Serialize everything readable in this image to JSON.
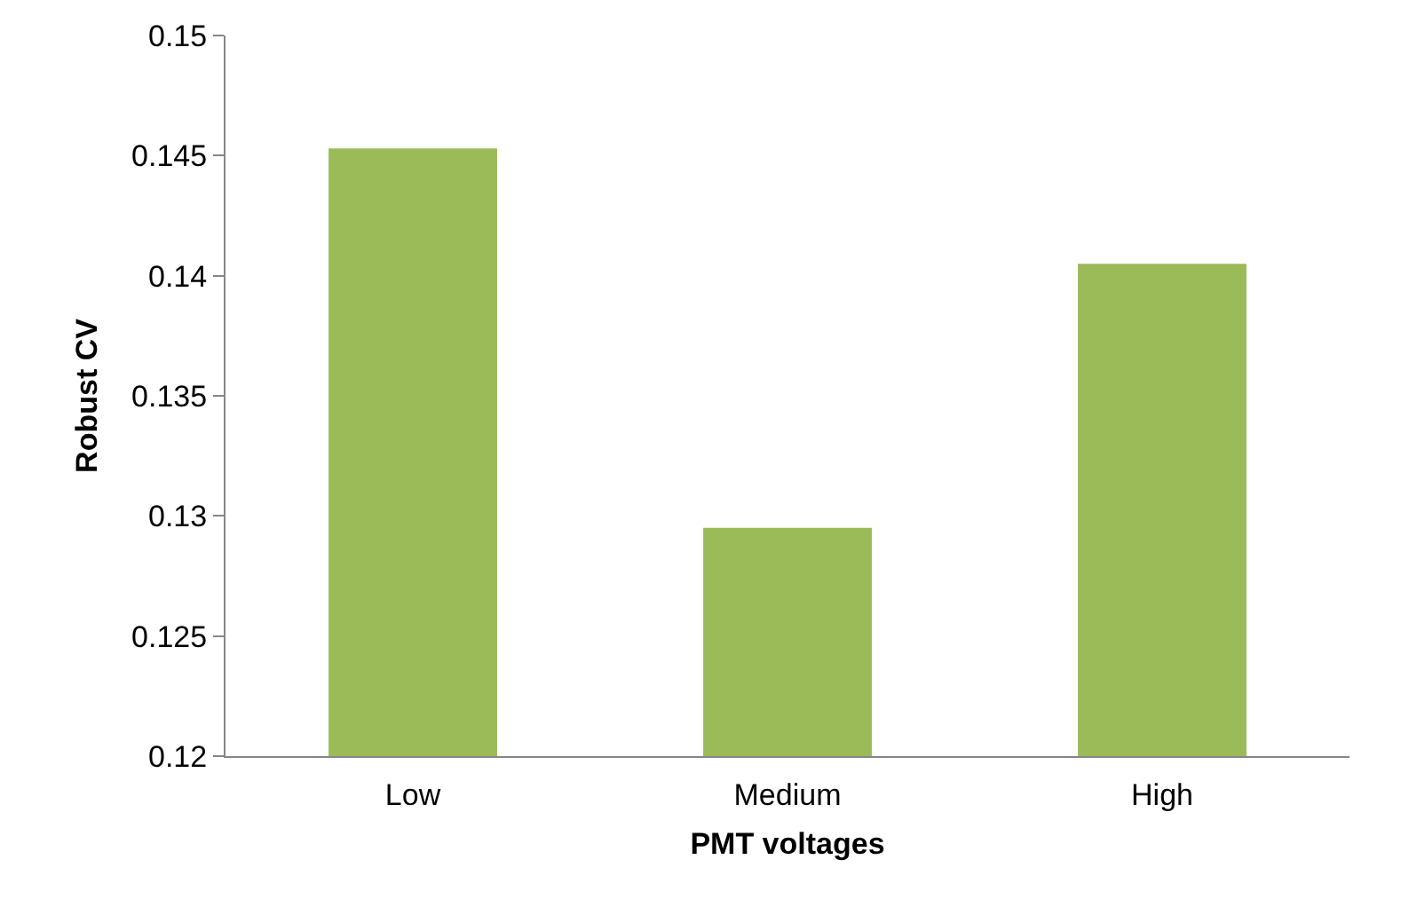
{
  "chart_data": {
    "type": "bar",
    "xlabel": "PMT voltages",
    "ylabel": "Robust CV",
    "categories": [
      "Low",
      "Medium",
      "High"
    ],
    "values": [
      0.1453,
      0.1295,
      0.1405
    ],
    "color": "#9bbb59",
    "ylim": [
      0.12,
      0.15
    ],
    "yticks": [
      0.12,
      0.125,
      0.13,
      0.135,
      0.14,
      0.145,
      0.15
    ],
    "grid": false
  }
}
